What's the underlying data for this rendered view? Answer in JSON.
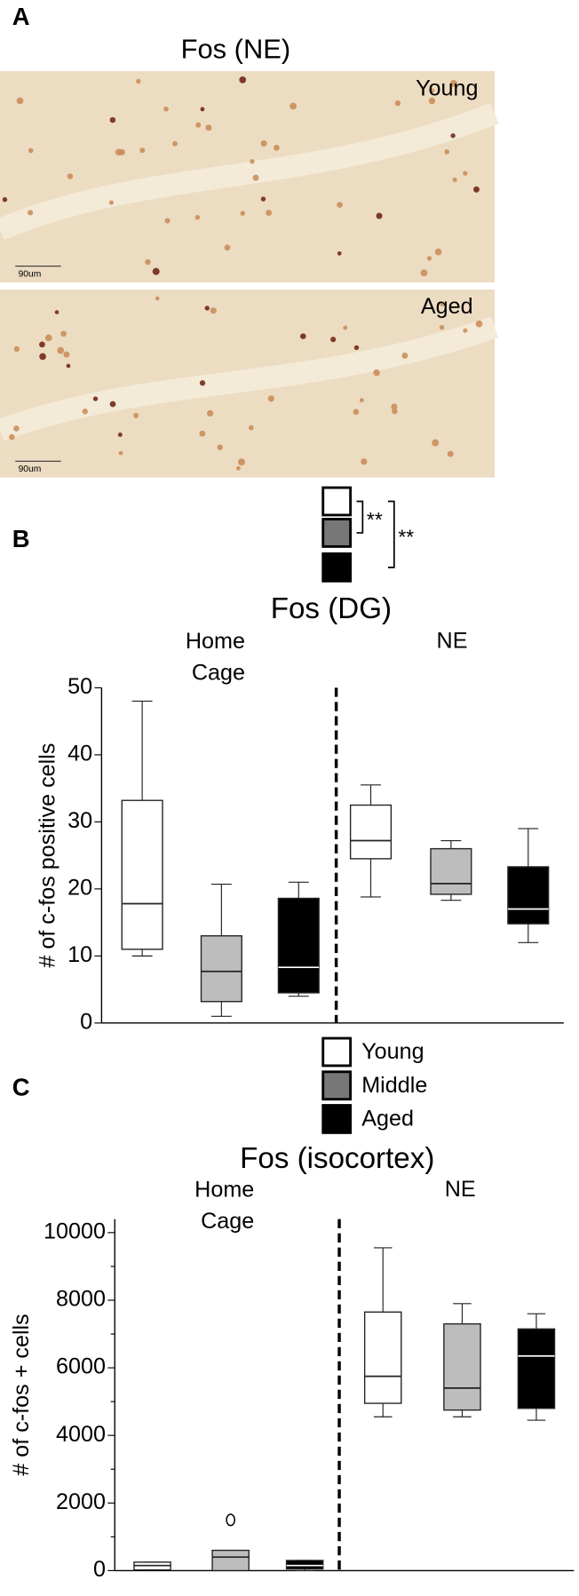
{
  "panel_labels": [
    "A",
    "B",
    "C"
  ],
  "micrograph": {
    "title": "Fos (NE)",
    "images": [
      {
        "label": "Young",
        "scale_bar": "90um"
      },
      {
        "label": "Aged",
        "scale_bar": "90um"
      }
    ]
  },
  "chart_data": [
    {
      "type": "box",
      "title": "Fos (DG)",
      "y_label": "# of c-fos positive cells",
      "categories": [
        "Home Cage",
        "NE"
      ],
      "ylim": [
        0,
        50
      ],
      "yticks": [
        0,
        10,
        20,
        30,
        40,
        50
      ],
      "annotations": [
        "**",
        "**"
      ],
      "series": [
        {
          "name": "Young",
          "color": "#ffffff",
          "boxes": [
            {
              "min": 10,
              "q1": 11,
              "median": 17.8,
              "q3": 33.2,
              "max": 48
            },
            {
              "min": 18.8,
              "q1": 24.5,
              "median": 27.2,
              "q3": 32.5,
              "max": 35.5
            }
          ]
        },
        {
          "name": "Middle",
          "color": "#bdbdbd",
          "boxes": [
            {
              "min": 1,
              "q1": 3.2,
              "median": 7.7,
              "q3": 13,
              "max": 20.7
            },
            {
              "min": 18.3,
              "q1": 19.2,
              "median": 20.8,
              "q3": 26,
              "max": 27.2
            }
          ]
        },
        {
          "name": "Aged",
          "color": "#000000",
          "boxes": [
            {
              "min": 4,
              "q1": 4.5,
              "median": 8.3,
              "q3": 18.6,
              "max": 21
            },
            {
              "min": 12,
              "q1": 14.8,
              "median": 17,
              "q3": 23.3,
              "max": 29
            }
          ]
        }
      ]
    },
    {
      "type": "box",
      "title": "Fos (isocortex)",
      "y_label": "# of c-fos + cells",
      "categories": [
        "Home Cage",
        "NE"
      ],
      "ylim": [
        0,
        10400
      ],
      "yticks": [
        0,
        2000,
        4000,
        6000,
        8000,
        10000
      ],
      "minor_yticks": [
        1000,
        3000,
        5000,
        7000,
        9000
      ],
      "series": [
        {
          "name": "Young",
          "color": "#ffffff",
          "boxes": [
            {
              "min": 20,
              "q1": 20,
              "median": 150,
              "q3": 250,
              "max": 250
            },
            {
              "min": 4550,
              "q1": 4950,
              "median": 5750,
              "q3": 7650,
              "max": 9550
            }
          ]
        },
        {
          "name": "Middle",
          "color": "#bdbdbd",
          "boxes": [
            {
              "min": 0,
              "q1": 0,
              "median": 400,
              "q3": 600,
              "max": 600
            },
            {
              "min": 4550,
              "q1": 4750,
              "median": 5400,
              "q3": 7300,
              "max": 7900
            }
          ],
          "outliers": [
            [
              1500
            ],
            []
          ]
        },
        {
          "name": "Aged",
          "color": "#000000",
          "boxes": [
            {
              "min": 0,
              "q1": 50,
              "median": 150,
              "q3": 300,
              "max": 300
            },
            {
              "min": 4450,
              "q1": 4800,
              "median": 6350,
              "q3": 7150,
              "max": 7600
            }
          ]
        }
      ]
    }
  ]
}
